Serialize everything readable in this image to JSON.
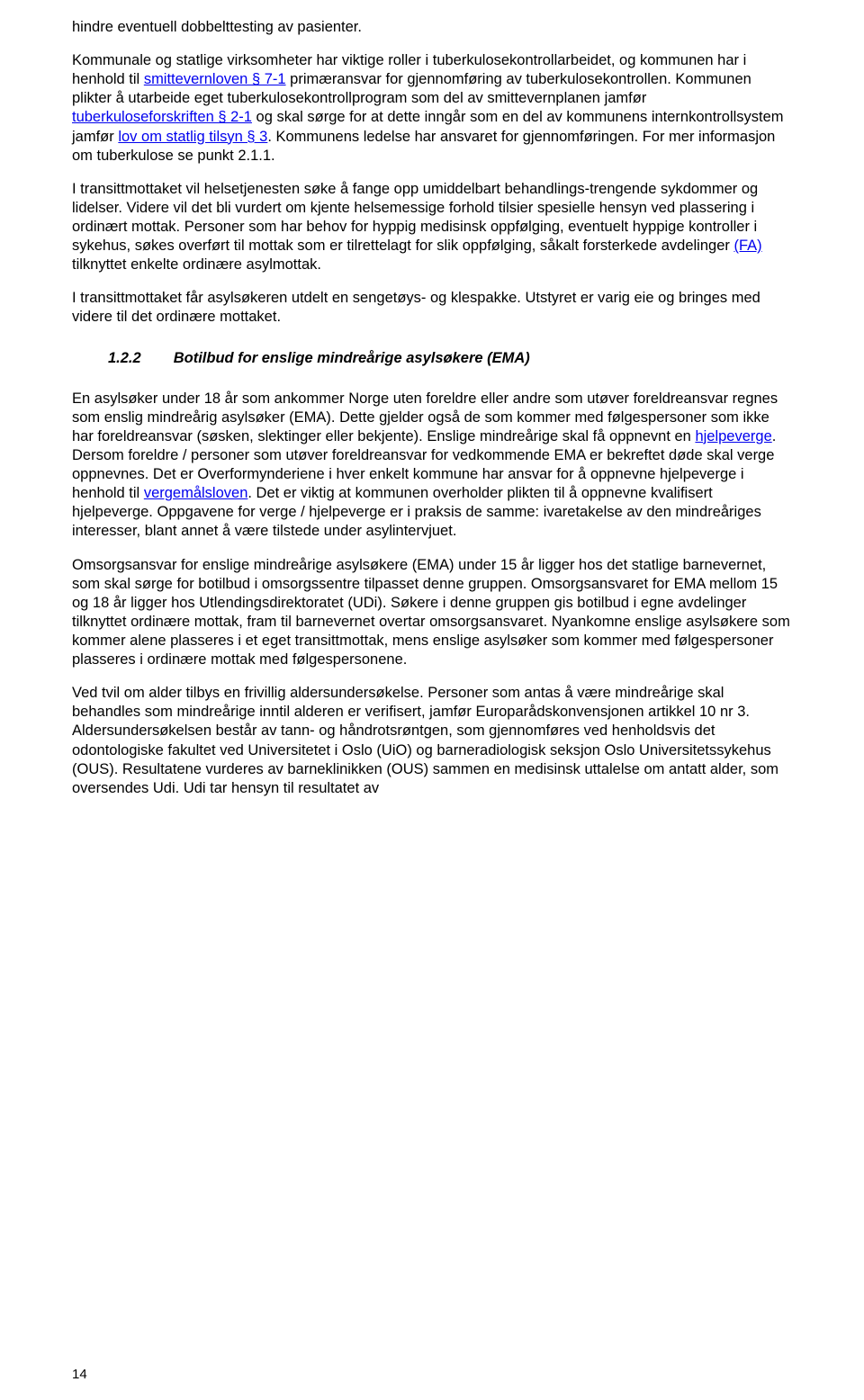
{
  "paragraphs": {
    "p1_pre": "hindre eventuell dobbelttesting av pasienter.",
    "p2_part1": "Kommunale og statlige virksomheter har viktige roller i tuberkulosekontrollarbeidet, og kommunen har i henhold til ",
    "p2_link1": "smittevernloven § 7-1",
    "p2_part2": " primæransvar for gjennomføring av tuberkulosekontrollen. Kommunen plikter å utarbeide eget tuberkulosekontrollprogram som del av smittevernplanen jamfør ",
    "p2_link2": "tuberkuloseforskriften § 2-1",
    "p2_part3": " og skal sørge for at dette inngår som en del av kommunens internkontrollsystem jamfør ",
    "p2_link3": "lov om statlig tilsyn § 3",
    "p2_part4": ". Kommunens ledelse har ansvaret for gjennomføringen. For mer informasjon om tuberkulose se punkt 2.1.1.",
    "p3_part1": "I transittmottaket vil helsetjenesten søke å fange opp umiddelbart behandlings-trengende sykdommer og lidelser. Videre vil det bli vurdert om kjente helsemessige forhold tilsier spesielle hensyn ved plassering i ordinært mottak. Personer som har behov for hyppig medisinsk oppfølging, eventuelt hyppige kontroller i sykehus, søkes overført til mottak som er tilrettelagt for slik oppfølging, såkalt forsterkede avdelinger ",
    "p3_link1": "(FA)",
    "p3_part2": " tilknyttet enkelte ordinære asylmottak.",
    "p4": "I transittmottaket får asylsøkeren utdelt en sengetøys- og klespakke. Utstyret er varig eie og bringes med videre til det ordinære mottaket.",
    "heading_number": "1.2.2",
    "heading_text": "Botilbud for enslige mindreårige asylsøkere (EMA)",
    "p5_part1": "En asylsøker under 18 år som ankommer Norge uten foreldre eller andre som utøver foreldreansvar regnes som enslig mindreårig asylsøker (EMA). Dette gjelder også de som kommer med følgespersoner som ikke har foreldreansvar (søsken, slektinger eller bekjente). Enslige mindreårige skal få oppnevnt en ",
    "p5_link1": "hjelpeverge",
    "p5_part2": ". Dersom foreldre / personer som utøver foreldreansvar for vedkommende EMA er bekreftet døde skal verge oppnevnes. Det er Overformynderiene i hver enkelt kommune har ansvar for å oppnevne hjelpeverge i henhold til ",
    "p5_link2": "vergemålsloven",
    "p5_part3": ". Det er viktig at kommunen overholder plikten til å oppnevne kvalifisert hjelpeverge. Oppgavene for verge / hjelpeverge er i praksis de samme: ivaretakelse av den mindreåriges interesser, blant annet å være tilstede under asylintervjuet.",
    "p6": "Omsorgsansvar for enslige mindreårige asylsøkere (EMA) under 15 år ligger hos det statlige barnevernet, som skal sørge for botilbud i omsorgssentre tilpasset denne gruppen. Omsorgsansvaret for EMA mellom 15 og 18 år ligger hos Utlendingsdirektoratet (UDi). Søkere i denne gruppen gis botilbud i egne avdelinger tilknyttet ordinære mottak, fram til barnevernet overtar omsorgsansvaret. Nyankomne enslige asylsøkere som kommer alene plasseres i et eget transittmottak, mens enslige asylsøker som kommer med følgespersoner plasseres i ordinære mottak med følgespersonene.",
    "p7": "Ved tvil om alder tilbys en frivillig aldersundersøkelse. Personer som antas å være mindreårige skal behandles som mindreårige inntil alderen er verifisert, jamfør Europarådskonvensjonen artikkel 10 nr 3. Aldersundersøkelsen består av tann- og håndrotsrøntgen, som gjennomføres ved henholdsvis det odontologiske fakultet ved Universitetet i Oslo (UiO) og barneradiologisk seksjon Oslo Universitetssykehus (OUS). Resultatene vurderes av barneklinikken (OUS) sammen en medisinsk uttalelse om antatt alder, som oversendes Udi. Udi tar hensyn til resultatet av"
  },
  "page_number": "14",
  "colors": {
    "link": "#0000ee",
    "text": "#000000",
    "background": "#ffffff"
  }
}
